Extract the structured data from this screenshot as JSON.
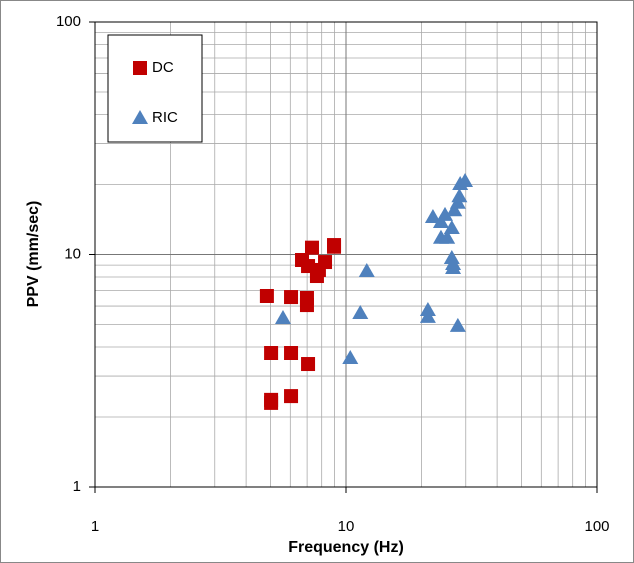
{
  "chart_data": {
    "type": "scatter",
    "x_label": "Frequency (Hz)",
    "y_label": "PPV  (mm/sec)",
    "xscale": "log",
    "yscale": "log",
    "grid": true,
    "legend": "upper left",
    "xlim": [
      1,
      100
    ],
    "ylim": [
      1,
      100
    ],
    "xticks": [
      1,
      10,
      100
    ],
    "yticks": [
      1,
      10,
      100
    ],
    "series": [
      {
        "name": "DC",
        "color": "#c00000",
        "marker": "square",
        "x": [
          4.84,
          5.03,
          5.03,
          5.03,
          6.04,
          6.04,
          6.04,
          6.99,
          6.99,
          7.06,
          6.68,
          7.06,
          7.32,
          7.66,
          7.8,
          8.25,
          8.96,
          8.96
        ],
        "values": [
          6.63,
          3.77,
          2.37,
          2.3,
          6.56,
          3.77,
          2.46,
          6.5,
          6.06,
          3.38,
          9.47,
          8.92,
          10.7,
          8.08,
          8.58,
          9.28,
          10.98,
          10.8
        ]
      },
      {
        "name": "RIC",
        "color": "#4f81bd",
        "marker": "triangle",
        "x": [
          5.61,
          10.4,
          11.4,
          12.1,
          21.2,
          21.2,
          22.2,
          23.9,
          24.8,
          23.9,
          25.3,
          26.4,
          26.4,
          26.7,
          26.7,
          27.0,
          27.9,
          27.9,
          28.3,
          28.5,
          29.8
        ],
        "values": [
          5.33,
          3.59,
          5.6,
          8.49,
          5.77,
          5.39,
          14.5,
          13.8,
          14.8,
          11.8,
          11.8,
          13.0,
          9.66,
          9.1,
          8.75,
          15.5,
          4.93,
          16.7,
          17.8,
          20.1,
          20.7
        ]
      }
    ]
  }
}
